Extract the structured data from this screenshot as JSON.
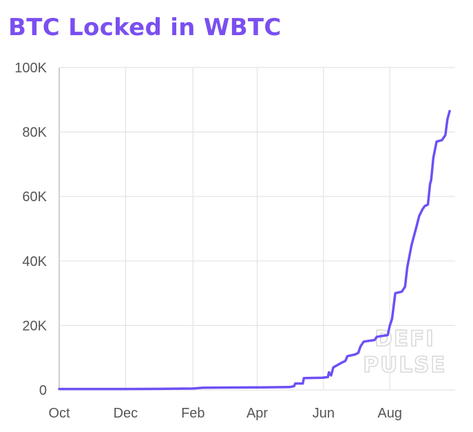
{
  "chart_data": {
    "type": "line",
    "title": "BTC Locked in WBTC",
    "xlabel": "",
    "ylabel": "",
    "xlim": [
      "2018-10-01",
      "2019-09-30"
    ],
    "ylim": [
      0,
      100000
    ],
    "x_ticks": [
      {
        "date": "2018-10-01",
        "label": "Oct"
      },
      {
        "date": "2018-12-01",
        "label": "Dec"
      },
      {
        "date": "2019-02-01",
        "label": "Feb"
      },
      {
        "date": "2019-04-01",
        "label": "Apr"
      },
      {
        "date": "2019-06-01",
        "label": "Jun"
      },
      {
        "date": "2019-08-01",
        "label": "Aug"
      }
    ],
    "y_ticks": [
      {
        "value": 0,
        "label": "0"
      },
      {
        "value": 20000,
        "label": "20K"
      },
      {
        "value": 40000,
        "label": "40K"
      },
      {
        "value": 60000,
        "label": "60K"
      },
      {
        "value": 80000,
        "label": "80K"
      },
      {
        "value": 100000,
        "label": "100K"
      }
    ],
    "grid": true,
    "legend": "none",
    "watermark": [
      "DEFI",
      "PULSE"
    ],
    "series": [
      {
        "color": "#6e4ff6",
        "points": [
          [
            "2018-10-01",
            300
          ],
          [
            "2018-11-01",
            300
          ],
          [
            "2018-12-01",
            300
          ],
          [
            "2019-01-01",
            350
          ],
          [
            "2019-02-01",
            450
          ],
          [
            "2019-02-10",
            700
          ],
          [
            "2019-03-01",
            750
          ],
          [
            "2019-04-01",
            800
          ],
          [
            "2019-05-01",
            900
          ],
          [
            "2019-05-05",
            1200
          ],
          [
            "2019-05-06",
            2000
          ],
          [
            "2019-05-13",
            2000
          ],
          [
            "2019-05-14",
            3700
          ],
          [
            "2019-05-31",
            3800
          ],
          [
            "2019-06-05",
            4000
          ],
          [
            "2019-06-06",
            5500
          ],
          [
            "2019-06-08",
            4500
          ],
          [
            "2019-06-10",
            7000
          ],
          [
            "2019-06-18",
            8500
          ],
          [
            "2019-06-21",
            9000
          ],
          [
            "2019-06-23",
            10500
          ],
          [
            "2019-06-30",
            11000
          ],
          [
            "2019-07-03",
            11500
          ],
          [
            "2019-07-05",
            13500
          ],
          [
            "2019-07-08",
            15000
          ],
          [
            "2019-07-18",
            15500
          ],
          [
            "2019-07-20",
            16500
          ],
          [
            "2019-07-30",
            17000
          ],
          [
            "2019-08-01",
            20000
          ],
          [
            "2019-08-03",
            22000
          ],
          [
            "2019-08-06",
            30000
          ],
          [
            "2019-08-12",
            30500
          ],
          [
            "2019-08-15",
            32000
          ],
          [
            "2019-08-17",
            38000
          ],
          [
            "2019-08-21",
            45000
          ],
          [
            "2019-08-25",
            50000
          ],
          [
            "2019-08-28",
            54000
          ],
          [
            "2019-08-31",
            56000
          ],
          [
            "2019-09-02",
            57000
          ],
          [
            "2019-09-05",
            57500
          ],
          [
            "2019-09-07",
            64000
          ],
          [
            "2019-09-08",
            65000
          ],
          [
            "2019-09-10",
            72000
          ],
          [
            "2019-09-13",
            77000
          ],
          [
            "2019-09-18",
            77500
          ],
          [
            "2019-09-21",
            79000
          ],
          [
            "2019-09-23",
            84000
          ],
          [
            "2019-09-25",
            86500
          ]
        ]
      }
    ]
  },
  "colors": {
    "title": "#7a4ff0",
    "line": "#6e4ff6",
    "grid": "#e3e3e3",
    "tick_text": "#555555"
  }
}
